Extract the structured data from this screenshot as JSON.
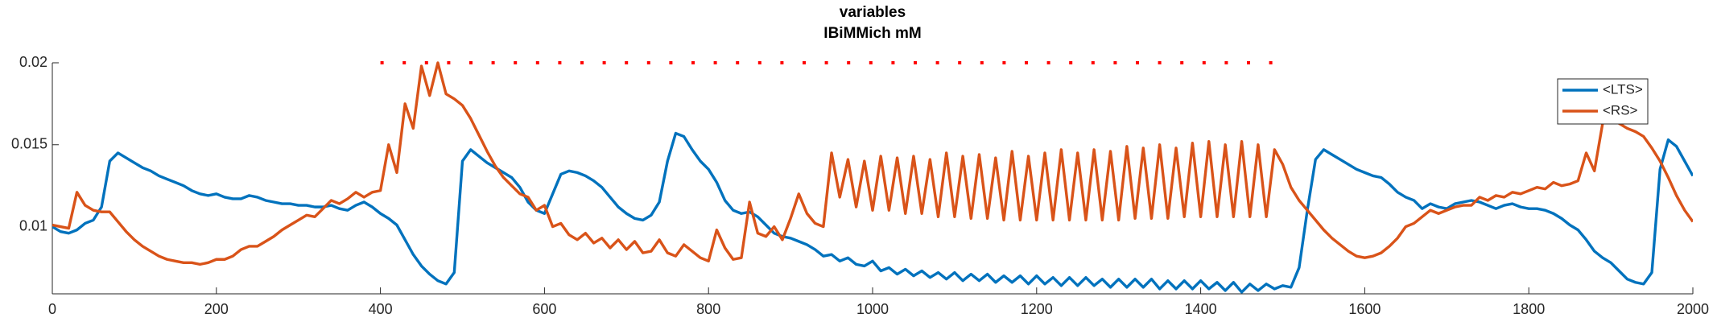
{
  "chart_data": {
    "type": "line",
    "title": "variables",
    "subtitle": "IBiMMich mM",
    "xlim": [
      0,
      2000
    ],
    "xticks": [
      0,
      200,
      400,
      600,
      800,
      1000,
      1200,
      1400,
      1600,
      1800,
      2000
    ],
    "ylim": [
      0.0059,
      0.02
    ],
    "yticks": [
      0.01,
      0.015,
      0.02
    ],
    "legend": "northeast",
    "dotted_line": {
      "x": [
        400,
        1500
      ],
      "y": 0.02,
      "color": "#ff0000"
    },
    "x": [
      0,
      10,
      20,
      30,
      40,
      50,
      60,
      70,
      80,
      90,
      100,
      110,
      120,
      130,
      140,
      150,
      160,
      170,
      180,
      190,
      200,
      210,
      220,
      230,
      240,
      250,
      260,
      270,
      280,
      290,
      300,
      310,
      320,
      330,
      340,
      350,
      360,
      370,
      380,
      390,
      400,
      410,
      420,
      430,
      440,
      450,
      460,
      470,
      480,
      490,
      500,
      510,
      520,
      530,
      540,
      550,
      560,
      570,
      580,
      590,
      600,
      610,
      620,
      630,
      640,
      650,
      660,
      670,
      680,
      690,
      700,
      710,
      720,
      730,
      740,
      750,
      760,
      770,
      780,
      790,
      800,
      810,
      820,
      830,
      840,
      850,
      860,
      870,
      880,
      890,
      900,
      910,
      920,
      930,
      940,
      950,
      960,
      970,
      980,
      990,
      1000,
      1010,
      1020,
      1030,
      1040,
      1050,
      1060,
      1070,
      1080,
      1090,
      1100,
      1110,
      1120,
      1130,
      1140,
      1150,
      1160,
      1170,
      1180,
      1190,
      1200,
      1210,
      1220,
      1230,
      1240,
      1250,
      1260,
      1270,
      1280,
      1290,
      1300,
      1310,
      1320,
      1330,
      1340,
      1350,
      1360,
      1370,
      1380,
      1390,
      1400,
      1410,
      1420,
      1430,
      1440,
      1450,
      1460,
      1470,
      1480,
      1490,
      1500,
      1510,
      1520,
      1530,
      1540,
      1550,
      1560,
      1570,
      1580,
      1590,
      1600,
      1610,
      1620,
      1630,
      1640,
      1650,
      1660,
      1670,
      1680,
      1690,
      1700,
      1710,
      1720,
      1730,
      1740,
      1750,
      1760,
      1770,
      1780,
      1790,
      1800,
      1810,
      1820,
      1830,
      1840,
      1850,
      1860,
      1870,
      1880,
      1890,
      1900,
      1910,
      1920,
      1930,
      1940,
      1950,
      1960,
      1970,
      1980,
      1990,
      2000
    ],
    "series": [
      {
        "name": "<LTS>",
        "color": "#0072bd",
        "values": [
          0.01,
          0.0097,
          0.0096,
          0.0098,
          0.0102,
          0.0104,
          0.0112,
          0.014,
          0.0145,
          0.0142,
          0.0139,
          0.0136,
          0.0134,
          0.0131,
          0.0129,
          0.0127,
          0.0125,
          0.0122,
          0.012,
          0.0119,
          0.012,
          0.0118,
          0.0117,
          0.0117,
          0.0119,
          0.0118,
          0.0116,
          0.0115,
          0.0114,
          0.0114,
          0.0113,
          0.0113,
          0.0112,
          0.0112,
          0.0113,
          0.0111,
          0.011,
          0.0113,
          0.0115,
          0.0112,
          0.0108,
          0.0105,
          0.0101,
          0.0092,
          0.0083,
          0.0076,
          0.0071,
          0.0067,
          0.0065,
          0.0072,
          0.014,
          0.0147,
          0.0143,
          0.0139,
          0.0136,
          0.0133,
          0.013,
          0.0124,
          0.0115,
          0.011,
          0.0108,
          0.012,
          0.0132,
          0.0134,
          0.0133,
          0.0131,
          0.0128,
          0.0124,
          0.0118,
          0.0112,
          0.0108,
          0.0105,
          0.0104,
          0.0107,
          0.0115,
          0.014,
          0.0157,
          0.0155,
          0.0147,
          0.014,
          0.0135,
          0.0127,
          0.0116,
          0.011,
          0.0108,
          0.0109,
          0.0106,
          0.0101,
          0.0096,
          0.0094,
          0.0093,
          0.0091,
          0.0089,
          0.0086,
          0.0082,
          0.0083,
          0.0079,
          0.0081,
          0.0077,
          0.0076,
          0.0079,
          0.0073,
          0.0075,
          0.0071,
          0.0074,
          0.007,
          0.0073,
          0.0069,
          0.0072,
          0.0068,
          0.0072,
          0.0067,
          0.0071,
          0.0067,
          0.0071,
          0.0066,
          0.007,
          0.0066,
          0.007,
          0.0065,
          0.007,
          0.0065,
          0.0069,
          0.0064,
          0.0069,
          0.0064,
          0.0069,
          0.0064,
          0.0068,
          0.0063,
          0.0068,
          0.0063,
          0.0068,
          0.0063,
          0.0068,
          0.0062,
          0.0067,
          0.0062,
          0.0067,
          0.0062,
          0.0067,
          0.0062,
          0.0066,
          0.0061,
          0.0066,
          0.006,
          0.0065,
          0.0061,
          0.0065,
          0.0062,
          0.0064,
          0.0063,
          0.0075,
          0.011,
          0.0141,
          0.0147,
          0.0144,
          0.0141,
          0.0138,
          0.0135,
          0.0133,
          0.0131,
          0.013,
          0.0126,
          0.0121,
          0.0118,
          0.0116,
          0.0111,
          0.0114,
          0.0112,
          0.0111,
          0.0114,
          0.0115,
          0.0116,
          0.0115,
          0.0113,
          0.0111,
          0.0113,
          0.0114,
          0.0112,
          0.0111,
          0.0111,
          0.011,
          0.0108,
          0.0105,
          0.0101,
          0.0098,
          0.0092,
          0.0085,
          0.0081,
          0.0078,
          0.0073,
          0.0068,
          0.0066,
          0.0065,
          0.0072,
          0.0135,
          0.0153,
          0.0149,
          0.014,
          0.0131
        ]
      },
      {
        "name": "<RS>",
        "color": "#d95319",
        "values": [
          0.0101,
          0.01,
          0.0099,
          0.0121,
          0.0113,
          0.011,
          0.0109,
          0.0109,
          0.0103,
          0.0097,
          0.0092,
          0.0088,
          0.0085,
          0.0082,
          0.008,
          0.0079,
          0.0078,
          0.0078,
          0.0077,
          0.0078,
          0.008,
          0.008,
          0.0082,
          0.0086,
          0.0088,
          0.0088,
          0.0091,
          0.0094,
          0.0098,
          0.0101,
          0.0104,
          0.0107,
          0.0106,
          0.0111,
          0.0116,
          0.0114,
          0.0117,
          0.0121,
          0.0118,
          0.0121,
          0.0122,
          0.015,
          0.0133,
          0.0175,
          0.016,
          0.0198,
          0.018,
          0.02,
          0.0181,
          0.0178,
          0.0174,
          0.0166,
          0.0156,
          0.0146,
          0.0137,
          0.013,
          0.0125,
          0.012,
          0.0118,
          0.011,
          0.0113,
          0.01,
          0.0102,
          0.0095,
          0.0092,
          0.0096,
          0.009,
          0.0093,
          0.0087,
          0.0092,
          0.0086,
          0.0091,
          0.0084,
          0.0085,
          0.0092,
          0.0084,
          0.0082,
          0.0089,
          0.0085,
          0.0081,
          0.0079,
          0.0098,
          0.0087,
          0.008,
          0.0081,
          0.0115,
          0.0096,
          0.0094,
          0.01,
          0.0092,
          0.0105,
          0.012,
          0.0108,
          0.0102,
          0.01,
          0.0145,
          0.0118,
          0.0141,
          0.0112,
          0.014,
          0.011,
          0.0143,
          0.011,
          0.0142,
          0.0108,
          0.0143,
          0.0108,
          0.0141,
          0.0106,
          0.0145,
          0.0106,
          0.0143,
          0.0105,
          0.0144,
          0.0105,
          0.0142,
          0.0104,
          0.0146,
          0.0104,
          0.0143,
          0.0104,
          0.0145,
          0.0104,
          0.0147,
          0.0104,
          0.0145,
          0.0104,
          0.0147,
          0.0104,
          0.0146,
          0.0104,
          0.0149,
          0.0105,
          0.0148,
          0.0105,
          0.015,
          0.0105,
          0.0148,
          0.0106,
          0.0151,
          0.0106,
          0.0152,
          0.0106,
          0.015,
          0.0106,
          0.0152,
          0.0106,
          0.015,
          0.0106,
          0.0147,
          0.0138,
          0.0124,
          0.0116,
          0.011,
          0.0104,
          0.0098,
          0.0093,
          0.0089,
          0.0085,
          0.0082,
          0.0081,
          0.0082,
          0.0084,
          0.0088,
          0.0093,
          0.01,
          0.0102,
          0.0106,
          0.011,
          0.0108,
          0.011,
          0.0112,
          0.0113,
          0.0113,
          0.0118,
          0.0116,
          0.0119,
          0.0118,
          0.0121,
          0.012,
          0.0122,
          0.0124,
          0.0123,
          0.0127,
          0.0125,
          0.0126,
          0.0128,
          0.0145,
          0.0134,
          0.0163,
          0.0178,
          0.0163,
          0.016,
          0.0158,
          0.0155,
          0.0148,
          0.014,
          0.013,
          0.0119,
          0.011,
          0.0103
        ]
      }
    ]
  }
}
